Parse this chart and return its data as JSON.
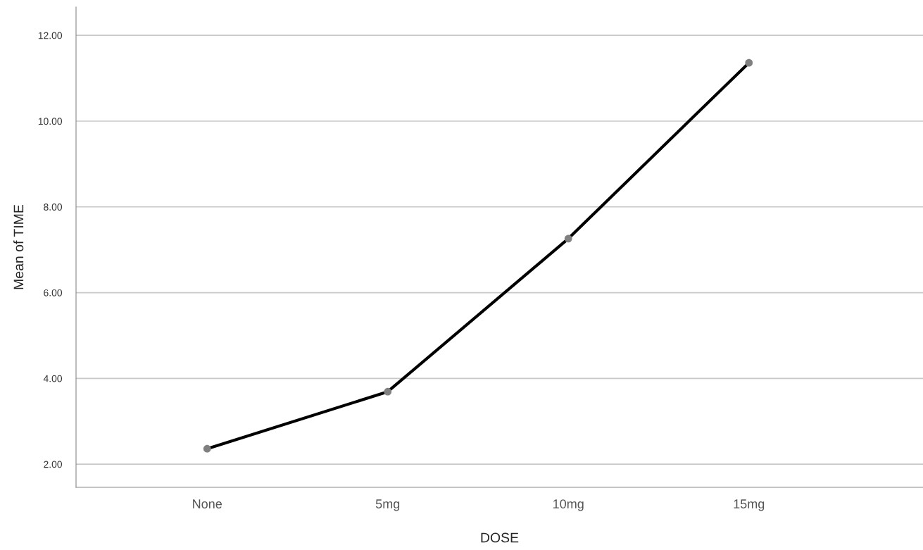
{
  "chart_data": {
    "type": "line",
    "xlabel": "DOSE",
    "ylabel": "Mean of TIME",
    "categories": [
      "None",
      "5mg",
      "10mg",
      "15mg"
    ],
    "series": [
      {
        "color": "#000000",
        "colors": [
          "#808080",
          "#808080",
          "#808080",
          "#808080"
        ],
        "values": [
          2.36,
          3.69,
          7.26,
          11.36
        ]
      }
    ],
    "ylim": [
      1.46,
      12.66
    ],
    "yticks": [
      {
        "value": 2,
        "label": "2.00"
      },
      {
        "value": 4,
        "label": "4.00"
      },
      {
        "value": 6,
        "label": "6.00"
      },
      {
        "value": 8,
        "label": "8.00"
      },
      {
        "value": 10,
        "label": "10.00"
      },
      {
        "value": 12,
        "label": "12.00"
      }
    ],
    "grid": "y",
    "marker": "circle",
    "line_style": "solid",
    "legend": false
  }
}
